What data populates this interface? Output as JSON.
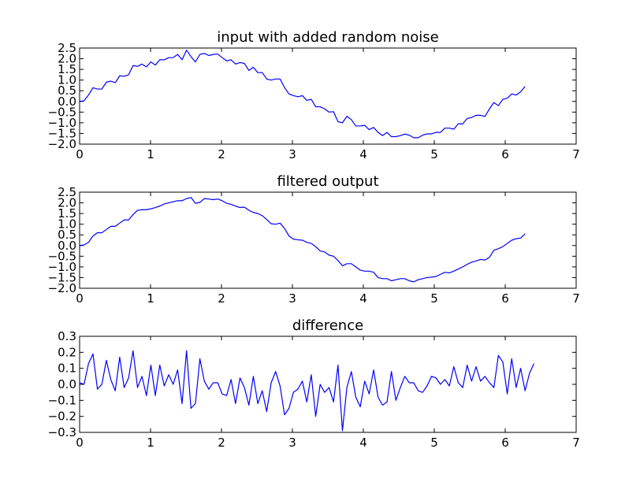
{
  "colors": {
    "series": "#0000ff",
    "axes": "#000000",
    "background": "#ffffff"
  },
  "chart_data": [
    {
      "type": "line",
      "title": "input with added random noise",
      "xlabel": "",
      "ylabel": "",
      "xlim": [
        0,
        7
      ],
      "ylim": [
        -2.0,
        2.5
      ],
      "xticks": [
        "0",
        "1",
        "2",
        "3",
        "4",
        "5",
        "6",
        "7"
      ],
      "yticks": [
        "2.5",
        "2.0",
        "1.5",
        "1.0",
        "0.5",
        "0.0",
        "−0.5",
        "−1.0",
        "−1.5",
        "−2.0"
      ],
      "grid": false,
      "series": [
        {
          "x_start": 0,
          "x_step": 0.0628,
          "values": [
            0.0,
            0.03,
            0.3,
            0.64,
            0.58,
            0.58,
            0.9,
            0.95,
            0.88,
            1.2,
            1.18,
            1.25,
            1.68,
            1.64,
            1.75,
            1.62,
            1.85,
            1.7,
            1.95,
            1.95,
            2.05,
            2.05,
            2.2,
            1.95,
            2.4,
            2.1,
            1.85,
            2.2,
            2.25,
            2.15,
            2.2,
            2.22,
            2.05,
            1.9,
            1.95,
            1.75,
            1.82,
            1.78,
            1.45,
            1.6,
            1.35,
            1.35,
            1.05,
            1.0,
            1.05,
            1.05,
            0.65,
            0.35,
            0.27,
            0.22,
            0.27,
            0.05,
            0.1,
            -0.25,
            -0.25,
            -0.35,
            -0.5,
            -0.48,
            -0.95,
            -1.0,
            -0.7,
            -0.85,
            -1.15,
            -1.15,
            -1.12,
            -1.32,
            -1.22,
            -1.45,
            -1.6,
            -1.45,
            -1.65,
            -1.65,
            -1.6,
            -1.53,
            -1.58,
            -1.7,
            -1.7,
            -1.58,
            -1.52,
            -1.52,
            -1.45,
            -1.45,
            -1.25,
            -1.25,
            -1.3,
            -1.05,
            -1.05,
            -0.8,
            -0.75,
            -0.65,
            -0.65,
            -0.7,
            -0.35,
            -0.05,
            -0.2,
            0.1,
            0.15,
            0.35,
            0.3,
            0.45,
            0.7
          ]
        }
      ]
    },
    {
      "type": "line",
      "title": "filtered output",
      "xlabel": "",
      "ylabel": "",
      "xlim": [
        0,
        7
      ],
      "ylim": [
        -2.0,
        2.5
      ],
      "xticks": [
        "0",
        "1",
        "2",
        "3",
        "4",
        "5",
        "6",
        "7"
      ],
      "yticks": [
        "2.5",
        "2.0",
        "1.5",
        "1.0",
        "0.5",
        "0.0",
        "−0.5",
        "−1.0",
        "−1.5",
        "−2.0"
      ],
      "grid": false,
      "series": [
        {
          "x_start": 0,
          "x_step": 0.0628,
          "values": [
            0.0,
            0.03,
            0.15,
            0.45,
            0.6,
            0.6,
            0.75,
            0.9,
            0.9,
            1.05,
            1.2,
            1.2,
            1.45,
            1.65,
            1.68,
            1.68,
            1.72,
            1.78,
            1.85,
            1.95,
            2.0,
            2.05,
            2.1,
            2.1,
            2.2,
            2.25,
            1.98,
            2.02,
            2.2,
            2.18,
            2.15,
            2.18,
            2.1,
            1.98,
            1.93,
            1.85,
            1.78,
            1.8,
            1.65,
            1.55,
            1.5,
            1.4,
            1.22,
            1.02,
            1.0,
            1.05,
            0.8,
            0.45,
            0.3,
            0.27,
            0.25,
            0.15,
            0.1,
            -0.05,
            -0.25,
            -0.3,
            -0.45,
            -0.5,
            -0.7,
            -0.95,
            -0.85,
            -0.85,
            -1.0,
            -1.15,
            -1.2,
            -1.2,
            -1.25,
            -1.5,
            -1.55,
            -1.55,
            -1.65,
            -1.6,
            -1.55,
            -1.55,
            -1.65,
            -1.7,
            -1.6,
            -1.55,
            -1.5,
            -1.48,
            -1.45,
            -1.35,
            -1.25,
            -1.28,
            -1.2,
            -1.1,
            -1.0,
            -0.88,
            -0.78,
            -0.72,
            -0.65,
            -0.68,
            -0.55,
            -0.22,
            -0.15,
            -0.05,
            0.1,
            0.25,
            0.32,
            0.35,
            0.55
          ]
        }
      ]
    },
    {
      "type": "line",
      "title": "difference",
      "xlabel": "",
      "ylabel": "",
      "xlim": [
        0,
        7
      ],
      "ylim": [
        -0.3,
        0.3
      ],
      "xticks": [
        "0",
        "1",
        "2",
        "3",
        "4",
        "5",
        "6",
        "7"
      ],
      "yticks": [
        "0.3",
        "0.2",
        "0.1",
        "0.0",
        "−0.1",
        "−0.2",
        "−0.3"
      ],
      "grid": false,
      "series": [
        {
          "x_start": 0,
          "x_step": 0.0628,
          "values": [
            0.01,
            0.0,
            0.13,
            0.19,
            -0.03,
            0.0,
            0.15,
            0.03,
            -0.04,
            0.17,
            -0.02,
            0.04,
            0.21,
            -0.02,
            0.05,
            -0.07,
            0.12,
            -0.07,
            0.12,
            -0.01,
            0.06,
            0.0,
            0.09,
            -0.12,
            0.21,
            -0.15,
            -0.12,
            0.16,
            0.02,
            -0.03,
            0.01,
            0.01,
            -0.06,
            -0.07,
            0.03,
            -0.12,
            0.04,
            -0.02,
            -0.13,
            0.05,
            -0.12,
            -0.04,
            -0.17,
            0.01,
            0.08,
            -0.01,
            -0.19,
            -0.15,
            -0.05,
            -0.03,
            0.02,
            -0.11,
            0.06,
            -0.2,
            0.0,
            -0.05,
            -0.02,
            -0.11,
            0.12,
            -0.29,
            -0.02,
            0.08,
            -0.08,
            -0.14,
            0.02,
            -0.06,
            0.09,
            -0.08,
            -0.13,
            -0.11,
            0.08,
            -0.1,
            -0.02,
            0.05,
            0.01,
            0.01,
            -0.04,
            -0.05,
            -0.01,
            0.05,
            0.04,
            0.0,
            0.03,
            -0.01,
            0.11,
            0.01,
            -0.02,
            0.12,
            0.02,
            0.11,
            0.02,
            0.05,
            0.01,
            -0.02,
            0.18,
            0.14,
            -0.06,
            0.16,
            -0.02,
            0.1,
            -0.04,
            0.07,
            0.13
          ]
        }
      ]
    }
  ]
}
